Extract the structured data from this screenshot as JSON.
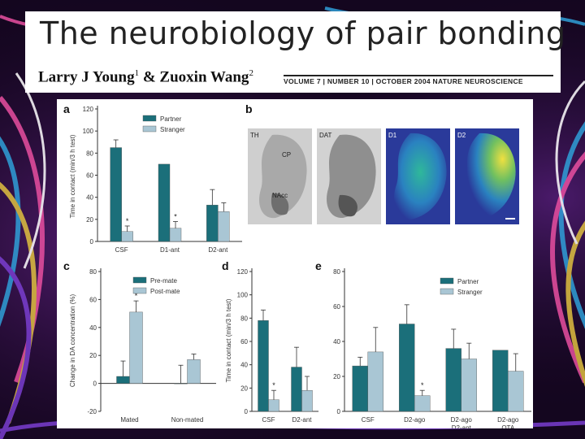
{
  "header": {
    "title": "The neurobiology of pair bonding",
    "authors": {
      "name1": "Larry J Young",
      "sup1": "1",
      "amp": " & ",
      "name2": "Zuoxin Wang",
      "sup2": "2"
    },
    "journal_line": "VOLUME 7 | NUMBER 10 | OCTOBER 2004 NATURE NEUROSCIENCE"
  },
  "colors": {
    "partner": "#1b6f7a",
    "stranger": "#a9c6d4",
    "background": "#14061f"
  },
  "panels": {
    "a": {
      "letter": "a"
    },
    "b": {
      "letter": "b",
      "images": [
        {
          "label": "TH",
          "region1": "CP",
          "region2": "NAcc",
          "style": "grayscale"
        },
        {
          "label": "DAT",
          "style": "grayscale"
        },
        {
          "label": "D1",
          "style": "autoradiograph"
        },
        {
          "label": "D2",
          "style": "autoradiograph"
        }
      ]
    },
    "c": {
      "letter": "c"
    },
    "d": {
      "letter": "d"
    },
    "e": {
      "letter": "e"
    }
  },
  "chart_data": [
    {
      "panel": "a",
      "type": "bar",
      "ylabel": "Time in contact (min/3 h test)",
      "ylim": [
        0,
        120
      ],
      "yticks": [
        0,
        20,
        40,
        60,
        80,
        100,
        120
      ],
      "categories": [
        "CSF",
        "D1-ant",
        "D2-ant"
      ],
      "series": [
        {
          "name": "Partner",
          "values": [
            85,
            70,
            33
          ],
          "errors": [
            7,
            0,
            14
          ]
        },
        {
          "name": "Stranger",
          "values": [
            9,
            12,
            27
          ],
          "errors": [
            5,
            6,
            8
          ]
        }
      ],
      "annotations": [
        {
          "category": 0,
          "series": 1,
          "text": "*"
        },
        {
          "category": 1,
          "series": 1,
          "text": "*"
        }
      ],
      "legend": "top-right"
    },
    {
      "panel": "c",
      "type": "bar",
      "ylabel": "Change in DA concentration (%)",
      "ylim": [
        -20,
        80
      ],
      "yticks": [
        -20,
        0,
        20,
        40,
        60,
        80
      ],
      "categories": [
        "Mated",
        "Non-mated"
      ],
      "series": [
        {
          "name": "Pre-mate",
          "values": [
            5,
            0
          ],
          "errors": [
            11,
            13
          ]
        },
        {
          "name": "Post-mate",
          "values": [
            51,
            17
          ],
          "errors": [
            8,
            4
          ]
        }
      ],
      "annotations": [
        {
          "category": 0,
          "series": 1,
          "text": "*"
        }
      ],
      "legend": "top-right"
    },
    {
      "panel": "d",
      "type": "bar",
      "ylabel": "Time in contact (min/3 h test)",
      "ylim": [
        0,
        120
      ],
      "yticks": [
        0,
        20,
        40,
        60,
        80,
        100,
        120
      ],
      "categories": [
        "CSF",
        "D2-ant"
      ],
      "series": [
        {
          "name": "Partner",
          "values": [
            78,
            38
          ],
          "errors": [
            9,
            17
          ]
        },
        {
          "name": "Stranger",
          "values": [
            10,
            18
          ],
          "errors": [
            8,
            12
          ]
        }
      ],
      "annotations": [
        {
          "category": 0,
          "series": 1,
          "text": "*"
        }
      ]
    },
    {
      "panel": "e",
      "type": "bar",
      "ylim": [
        0,
        80
      ],
      "yticks": [
        0,
        20,
        40,
        60,
        80
      ],
      "categories": [
        [
          "CSF"
        ],
        [
          "D2-ago"
        ],
        [
          "D2-ago",
          "D2-ant"
        ],
        [
          "D2-ago",
          "OTA"
        ]
      ],
      "series": [
        {
          "name": "Partner",
          "values": [
            26,
            50,
            36,
            35
          ],
          "errors": [
            5,
            11,
            11,
            0
          ]
        },
        {
          "name": "Stranger",
          "values": [
            34,
            9,
            30,
            23
          ],
          "errors": [
            14,
            3,
            9,
            10
          ]
        }
      ],
      "annotations": [
        {
          "category": 1,
          "series": 1,
          "text": "*"
        }
      ],
      "legend": "top-right"
    }
  ]
}
